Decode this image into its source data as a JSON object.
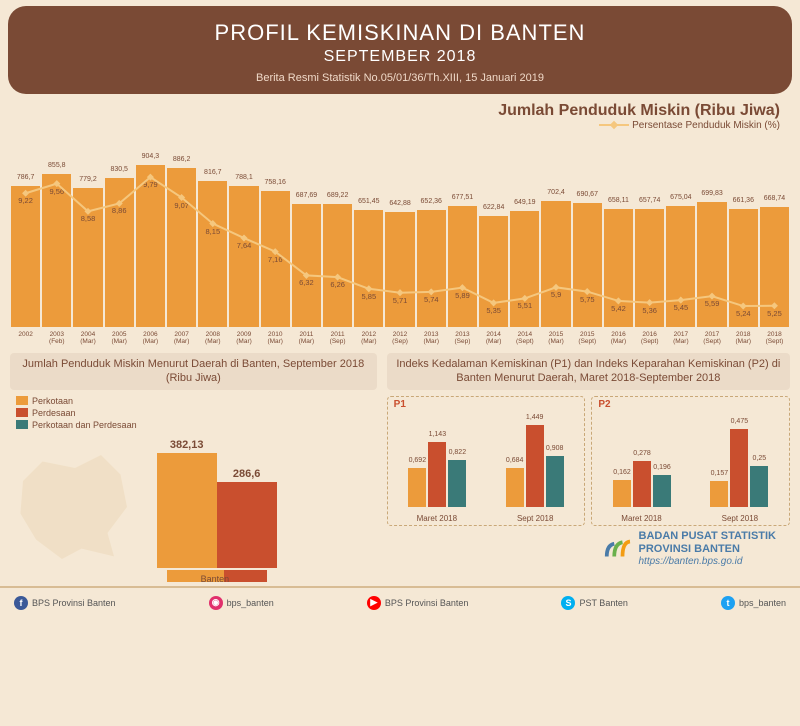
{
  "header": {
    "title": "PROFIL KEMISKINAN DI BANTEN",
    "subtitle": "SEPTEMBER 2018",
    "ref": "Berita Resmi Statistik No.05/01/36/Th.XIII, 15 Januari 2019"
  },
  "main_chart": {
    "title": "Jumlah Penduduk Miskin (Ribu Jiwa)",
    "legend": "Persentase Penduduk Miskin (%)",
    "ymax": 950,
    "bar_color": "#ec9b3b",
    "line_color": "#f5c77e",
    "data": [
      {
        "x1": "2002",
        "x2": "",
        "bar": 786.7,
        "pct": 9.22
      },
      {
        "x1": "2003",
        "x2": "(Feb)",
        "bar": 855.8,
        "pct": 9.56
      },
      {
        "x1": "2004",
        "x2": "(Mar)",
        "bar": 779.2,
        "pct": 8.58
      },
      {
        "x1": "2005",
        "x2": "(Mar)",
        "bar": 830.5,
        "pct": 8.86
      },
      {
        "x1": "2006",
        "x2": "(Mar)",
        "bar": 904.3,
        "pct": 9.79
      },
      {
        "x1": "2007",
        "x2": "(Mar)",
        "bar": 886.2,
        "pct": 9.07
      },
      {
        "x1": "2008",
        "x2": "(Mar)",
        "bar": 816.7,
        "pct": 8.15
      },
      {
        "x1": "2009",
        "x2": "(Mar)",
        "bar": 788.1,
        "pct": 7.64
      },
      {
        "x1": "2010",
        "x2": "(Mar)",
        "bar": 758.16,
        "pct": 7.16
      },
      {
        "x1": "2011",
        "x2": "(Mar)",
        "bar": 687.69,
        "pct": 6.32
      },
      {
        "x1": "2011",
        "x2": "(Sep)",
        "bar": 689.22,
        "pct": 6.26
      },
      {
        "x1": "2012",
        "x2": "(Mar)",
        "bar": 651.45,
        "pct": 5.85
      },
      {
        "x1": "2012",
        "x2": "(Sep)",
        "bar": 642.88,
        "pct": 5.71
      },
      {
        "x1": "2013",
        "x2": "(Mar)",
        "bar": 652.36,
        "pct": 5.74
      },
      {
        "x1": "2013",
        "x2": "(Sep)",
        "bar": 677.51,
        "pct": 5.89
      },
      {
        "x1": "2014",
        "x2": "(Mar)",
        "bar": 622.84,
        "pct": 5.35
      },
      {
        "x1": "2014",
        "x2": "(Sept)",
        "bar": 649.19,
        "pct": 5.51
      },
      {
        "x1": "2015",
        "x2": "(Mar)",
        "bar": 702.4,
        "pct": 5.9
      },
      {
        "x1": "2015",
        "x2": "(Sept)",
        "bar": 690.67,
        "pct": 5.75
      },
      {
        "x1": "2016",
        "x2": "(Mar)",
        "bar": 658.11,
        "pct": 5.42
      },
      {
        "x1": "2016",
        "x2": "(Sept)",
        "bar": 657.74,
        "pct": 5.36
      },
      {
        "x1": "2017",
        "x2": "(Mar)",
        "bar": 675.04,
        "pct": 5.45
      },
      {
        "x1": "2017",
        "x2": "(Sept)",
        "bar": 699.83,
        "pct": 5.59
      },
      {
        "x1": "2018",
        "x2": "(Mar)",
        "bar": 661.36,
        "pct": 5.24
      },
      {
        "x1": "2018",
        "x2": "(Sept)",
        "bar": 668.74,
        "pct": 5.25
      }
    ],
    "pct_y_min": 4.5,
    "pct_y_max": 10.5
  },
  "left_panel": {
    "title": "Jumlah Penduduk Miskin Menurut Daerah di Banten, September 2018 (Ribu Jiwa)",
    "legend": [
      {
        "label": "Perkotaan",
        "color": "#ec9b3b"
      },
      {
        "label": "Perdesaan",
        "color": "#c94f2e"
      },
      {
        "label": "Perkotaan dan Perdesaan",
        "color": "#3a7a78"
      }
    ],
    "perkotaan": 382.13,
    "perdesaan": 286.6,
    "x_label": "Banten"
  },
  "right_panel": {
    "title": "Indeks Kedalaman Kemiskinan (P1) dan Indeks Keparahan Kemiskinan (P2) di Banten Menurut Daerah, Maret 2018-September 2018",
    "colors": {
      "perkotaan": "#ec9b3b",
      "perdesaan": "#c94f2e",
      "total": "#3a7a78"
    },
    "p1": {
      "label": "P1",
      "ymax": 1.6,
      "groups": [
        {
          "x": "Maret 2018",
          "vals": [
            0.692,
            1.143,
            0.822
          ]
        },
        {
          "x": "Sept 2018",
          "vals": [
            0.684,
            1.449,
            0.908
          ]
        }
      ]
    },
    "p2": {
      "label": "P2",
      "ymax": 0.55,
      "groups": [
        {
          "x": "Maret 2018",
          "vals": [
            0.162,
            0.278,
            0.196
          ]
        },
        {
          "x": "Sept 2018",
          "vals": [
            0.157,
            0.475,
            0.25
          ]
        }
      ]
    }
  },
  "org": {
    "name": "BADAN PUSAT STATISTIK",
    "sub": "PROVINSI BANTEN",
    "url": "https://banten.bps.go.id"
  },
  "footer": [
    {
      "icon": "f",
      "color": "#3b5998",
      "label": "BPS Provinsi Banten"
    },
    {
      "icon": "◉",
      "color": "#e1306c",
      "label": "bps_banten"
    },
    {
      "icon": "▶",
      "color": "#ff0000",
      "label": "BPS Provinsi Banten"
    },
    {
      "icon": "S",
      "color": "#00aff0",
      "label": "PST Banten"
    },
    {
      "icon": "t",
      "color": "#1da1f2",
      "label": "bps_banten"
    }
  ]
}
